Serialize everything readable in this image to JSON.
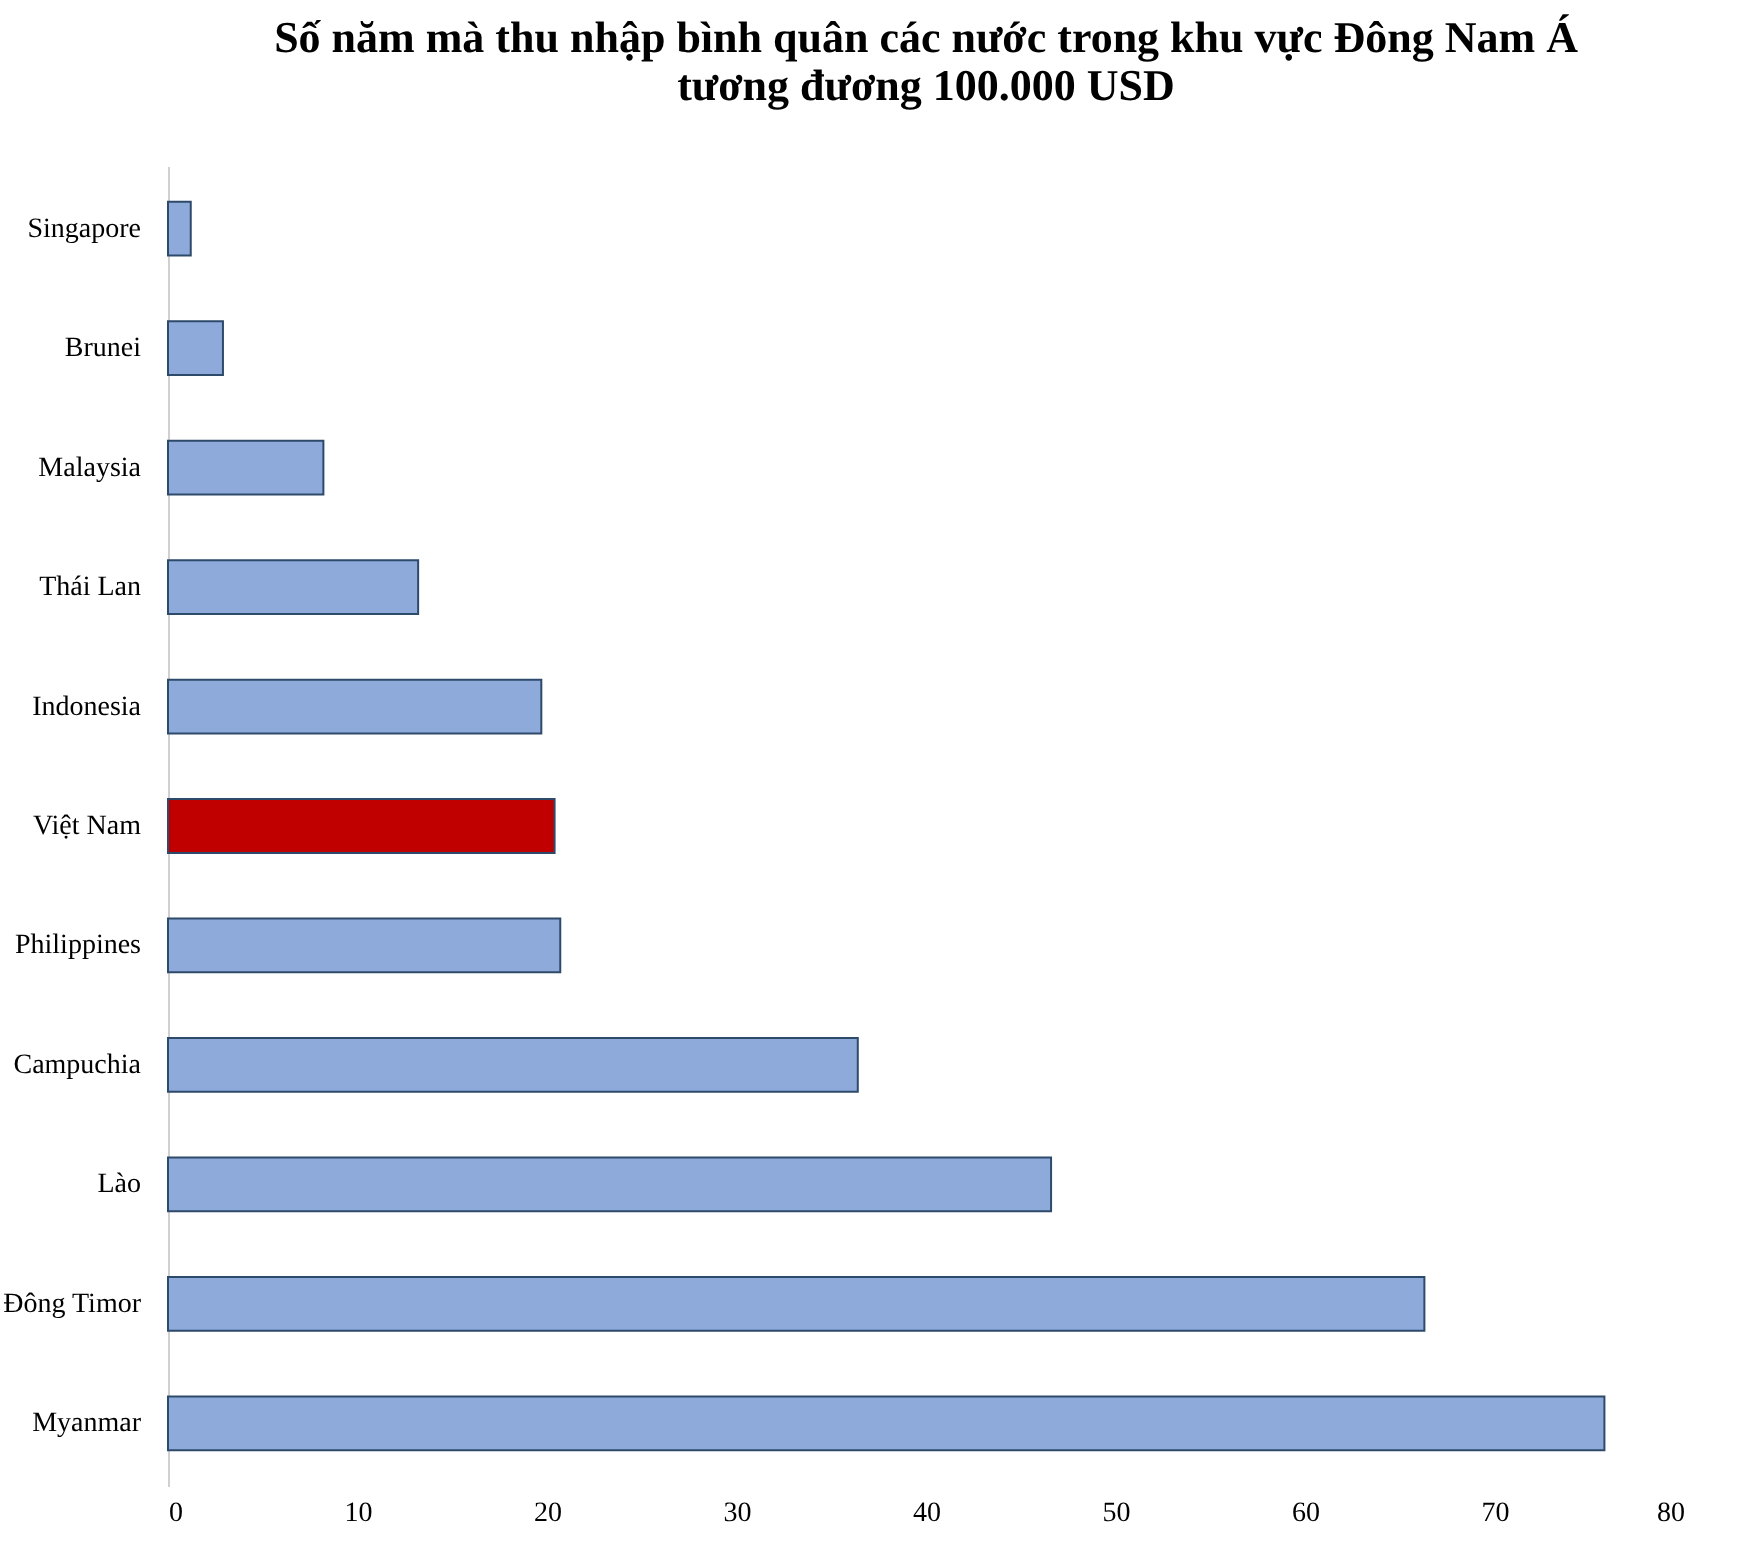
{
  "chart_data": {
    "type": "bar",
    "orientation": "horizontal",
    "title": "Số năm mà thu nhập bình quân các nước trong khu vực Đông Nam Á\ntương đương 100.000 USD",
    "categories": [
      "Singapore",
      "Brunei",
      "Malaysia",
      "Thái Lan",
      "Indonesia",
      "Việt Nam",
      "Philippines",
      "Campuchia",
      "Lào",
      "Đông Timor",
      "Myanmar"
    ],
    "values": [
      1.2,
      2.9,
      8.2,
      13.2,
      19.7,
      20.4,
      20.7,
      36.4,
      46.6,
      66.3,
      75.8
    ],
    "colors": [
      "#8eaadb",
      "#8eaadb",
      "#8eaadb",
      "#8eaadb",
      "#8eaadb",
      "#c00000",
      "#8eaadb",
      "#8eaadb",
      "#8eaadb",
      "#8eaadb",
      "#8eaadb"
    ],
    "xlim": [
      0,
      80
    ],
    "xticks": [
      0,
      10,
      20,
      30,
      40,
      50,
      60,
      70,
      80
    ],
    "grid": false
  }
}
